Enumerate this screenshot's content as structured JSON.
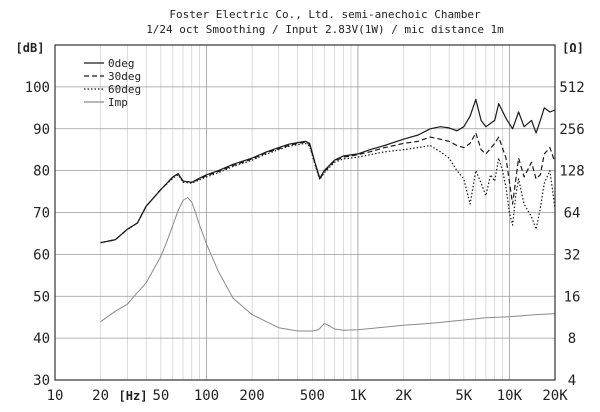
{
  "chart_data": {
    "type": "line",
    "title_lines": [
      "Foster Electric Co., Ltd. semi-anechoic Chamber",
      "1/24 oct Smoothing / Input 2.83V(1W) / mic distance 1m"
    ],
    "ylabel_left": "[dB]",
    "ylabel_right": "[Ω]",
    "xlabel": "[Hz]",
    "x_scale": "log",
    "xlim": [
      10,
      20000
    ],
    "ylim_left": [
      30,
      110
    ],
    "ylim_right": [
      4,
      1024
    ],
    "y_scale_right": "log2",
    "x_ticks": [
      {
        "value": 10,
        "label": "10"
      },
      {
        "value": 20,
        "label": "20"
      },
      {
        "value": 50,
        "label": "50"
      },
      {
        "value": 100,
        "label": "100"
      },
      {
        "value": 200,
        "label": "200"
      },
      {
        "value": 500,
        "label": "500"
      },
      {
        "value": 1000,
        "label": "1K"
      },
      {
        "value": 2000,
        "label": "2K"
      },
      {
        "value": 5000,
        "label": "5K"
      },
      {
        "value": 10000,
        "label": "10K"
      },
      {
        "value": 20000,
        "label": "20K"
      }
    ],
    "y_ticks_left": [
      {
        "value": 30,
        "label": "30"
      },
      {
        "value": 40,
        "label": "40"
      },
      {
        "value": 50,
        "label": "50"
      },
      {
        "value": 60,
        "label": "60"
      },
      {
        "value": 70,
        "label": "70"
      },
      {
        "value": 80,
        "label": "80"
      },
      {
        "value": 90,
        "label": "90"
      },
      {
        "value": 100,
        "label": "100"
      }
    ],
    "y_ticks_right": [
      {
        "value": 4,
        "label": "4"
      },
      {
        "value": 8,
        "label": "8"
      },
      {
        "value": 16,
        "label": "16"
      },
      {
        "value": 32,
        "label": "32"
      },
      {
        "value": 64,
        "label": "64"
      },
      {
        "value": 128,
        "label": "128"
      },
      {
        "value": 256,
        "label": "256"
      },
      {
        "value": 512,
        "label": "512"
      }
    ],
    "grid": true,
    "legend_position": "top-left",
    "series": [
      {
        "name": "0deg",
        "axis": "left",
        "dash": "",
        "color": "#1a1a1a",
        "points": [
          [
            20,
            62.8
          ],
          [
            25,
            63.5
          ],
          [
            30,
            66
          ],
          [
            35,
            67.5
          ],
          [
            40,
            71.5
          ],
          [
            50,
            75.5
          ],
          [
            60,
            78.5
          ],
          [
            65,
            79.3
          ],
          [
            70,
            77.5
          ],
          [
            80,
            77.2
          ],
          [
            90,
            78.2
          ],
          [
            100,
            79
          ],
          [
            120,
            80
          ],
          [
            150,
            81.5
          ],
          [
            200,
            83
          ],
          [
            250,
            84.5
          ],
          [
            300,
            85.5
          ],
          [
            350,
            86.3
          ],
          [
            400,
            86.7
          ],
          [
            450,
            87
          ],
          [
            480,
            86.5
          ],
          [
            520,
            82
          ],
          [
            560,
            78.2
          ],
          [
            600,
            80
          ],
          [
            700,
            82.5
          ],
          [
            800,
            83.5
          ],
          [
            1000,
            84
          ],
          [
            1200,
            85
          ],
          [
            1500,
            86
          ],
          [
            2000,
            87.5
          ],
          [
            2500,
            88.5
          ],
          [
            3000,
            90
          ],
          [
            3500,
            90.5
          ],
          [
            4000,
            90.2
          ],
          [
            4500,
            89.5
          ],
          [
            5000,
            90.5
          ],
          [
            5500,
            93
          ],
          [
            6000,
            97
          ],
          [
            6500,
            92
          ],
          [
            7000,
            90.5
          ],
          [
            8000,
            92
          ],
          [
            8500,
            96
          ],
          [
            9500,
            92.5
          ],
          [
            10500,
            90
          ],
          [
            11500,
            94
          ],
          [
            12500,
            90.5
          ],
          [
            14000,
            92
          ],
          [
            15000,
            89
          ],
          [
            16000,
            92
          ],
          [
            17000,
            95
          ],
          [
            18500,
            94
          ],
          [
            20000,
            94.5
          ]
        ]
      },
      {
        "name": "30deg",
        "axis": "left",
        "dash": "5,3",
        "color": "#1a1a1a",
        "points": [
          [
            20,
            62.8
          ],
          [
            25,
            63.5
          ],
          [
            30,
            66
          ],
          [
            35,
            67.5
          ],
          [
            40,
            71.5
          ],
          [
            50,
            75.5
          ],
          [
            60,
            78.5
          ],
          [
            65,
            79.2
          ],
          [
            70,
            77.5
          ],
          [
            80,
            77.2
          ],
          [
            90,
            78
          ],
          [
            100,
            78.8
          ],
          [
            120,
            79.8
          ],
          [
            150,
            81.2
          ],
          [
            200,
            82.8
          ],
          [
            250,
            84.3
          ],
          [
            300,
            85.2
          ],
          [
            350,
            86
          ],
          [
            400,
            86.5
          ],
          [
            450,
            86.8
          ],
          [
            480,
            86.2
          ],
          [
            520,
            81.8
          ],
          [
            560,
            78
          ],
          [
            600,
            79.8
          ],
          [
            700,
            82.3
          ],
          [
            800,
            83.2
          ],
          [
            1000,
            83.8
          ],
          [
            1200,
            84.5
          ],
          [
            1500,
            85.5
          ],
          [
            2000,
            86.5
          ],
          [
            2500,
            87
          ],
          [
            3000,
            88
          ],
          [
            3500,
            87.5
          ],
          [
            4000,
            87
          ],
          [
            4500,
            86
          ],
          [
            5000,
            85.5
          ],
          [
            5500,
            86.5
          ],
          [
            6000,
            89
          ],
          [
            6500,
            85
          ],
          [
            7000,
            84
          ],
          [
            8000,
            86.5
          ],
          [
            8500,
            88
          ],
          [
            9500,
            83
          ],
          [
            10500,
            72
          ],
          [
            11500,
            83
          ],
          [
            12500,
            78.5
          ],
          [
            14000,
            82
          ],
          [
            15000,
            78
          ],
          [
            16000,
            79
          ],
          [
            17000,
            84
          ],
          [
            18500,
            85.5
          ],
          [
            20000,
            82
          ]
        ]
      },
      {
        "name": "60deg",
        "axis": "left",
        "dash": "1.5,2",
        "color": "#1a1a1a",
        "points": [
          [
            20,
            62.8
          ],
          [
            25,
            63.5
          ],
          [
            30,
            66
          ],
          [
            35,
            67.5
          ],
          [
            40,
            71.5
          ],
          [
            50,
            75.5
          ],
          [
            60,
            78.2
          ],
          [
            65,
            79
          ],
          [
            70,
            77.2
          ],
          [
            80,
            77
          ],
          [
            90,
            77.8
          ],
          [
            100,
            78.5
          ],
          [
            120,
            79.5
          ],
          [
            150,
            81
          ],
          [
            200,
            82.5
          ],
          [
            250,
            84
          ],
          [
            300,
            85
          ],
          [
            350,
            85.8
          ],
          [
            400,
            86.2
          ],
          [
            450,
            86.5
          ],
          [
            480,
            85.8
          ],
          [
            520,
            81.5
          ],
          [
            560,
            77.8
          ],
          [
            600,
            79.5
          ],
          [
            700,
            82
          ],
          [
            800,
            82.8
          ],
          [
            1000,
            83.2
          ],
          [
            1200,
            83.8
          ],
          [
            1500,
            84.5
          ],
          [
            2000,
            85
          ],
          [
            2500,
            85.5
          ],
          [
            3000,
            86
          ],
          [
            3500,
            84.5
          ],
          [
            4000,
            83
          ],
          [
            4500,
            80
          ],
          [
            5000,
            78
          ],
          [
            5500,
            72
          ],
          [
            6000,
            80
          ],
          [
            6500,
            77
          ],
          [
            7000,
            74
          ],
          [
            7500,
            79
          ],
          [
            8000,
            77.5
          ],
          [
            8500,
            83
          ],
          [
            9000,
            80
          ],
          [
            9500,
            76
          ],
          [
            10000,
            70
          ],
          [
            10500,
            67
          ],
          [
            11000,
            74
          ],
          [
            11500,
            78
          ],
          [
            12500,
            72
          ],
          [
            14000,
            69
          ],
          [
            15000,
            66
          ],
          [
            16000,
            71
          ],
          [
            17000,
            77
          ],
          [
            18500,
            80
          ],
          [
            20000,
            71
          ]
        ]
      },
      {
        "name": "Imp",
        "axis": "right",
        "dash": "",
        "color": "#8a8a8a",
        "points": [
          [
            20,
            10.5
          ],
          [
            25,
            12.5
          ],
          [
            30,
            14
          ],
          [
            35,
            17
          ],
          [
            40,
            20
          ],
          [
            50,
            31
          ],
          [
            55,
            40
          ],
          [
            60,
            52
          ],
          [
            65,
            66
          ],
          [
            70,
            78
          ],
          [
            75,
            82
          ],
          [
            80,
            76
          ],
          [
            85,
            63
          ],
          [
            90,
            52
          ],
          [
            100,
            38
          ],
          [
            120,
            24
          ],
          [
            150,
            15.5
          ],
          [
            200,
            11.8
          ],
          [
            300,
            9.5
          ],
          [
            400,
            9
          ],
          [
            500,
            9
          ],
          [
            550,
            9.2
          ],
          [
            600,
            10.2
          ],
          [
            650,
            9.8
          ],
          [
            700,
            9.3
          ],
          [
            800,
            9.1
          ],
          [
            1000,
            9.2
          ],
          [
            1500,
            9.6
          ],
          [
            2000,
            9.9
          ],
          [
            3000,
            10.2
          ],
          [
            5000,
            10.8
          ],
          [
            7000,
            11.2
          ],
          [
            10000,
            11.4
          ],
          [
            15000,
            11.8
          ],
          [
            20000,
            12
          ]
        ]
      }
    ]
  }
}
